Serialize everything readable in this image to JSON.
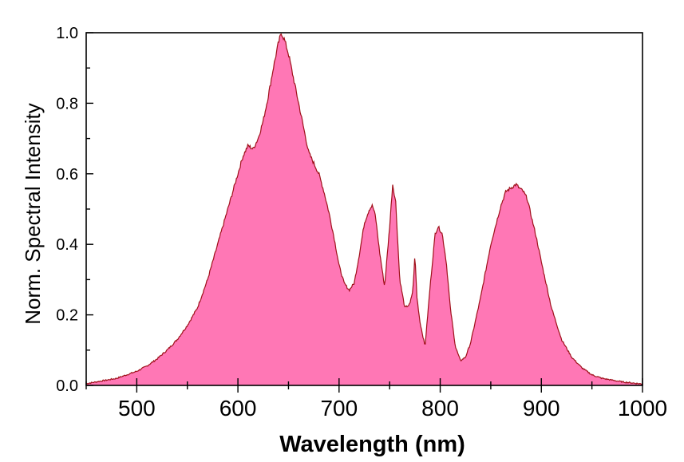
{
  "chart_data": {
    "type": "area",
    "title": "",
    "xlabel": "Wavelength (nm)",
    "ylabel": "Norm. Spectral Intensity",
    "xlim": [
      450,
      1000
    ],
    "ylim": [
      0,
      1.0
    ],
    "x_ticks": [
      500,
      600,
      700,
      800,
      900,
      1000
    ],
    "x_tick_labels": [
      "500",
      "600",
      "700",
      "800",
      "900",
      "1000"
    ],
    "y_ticks": [
      0.0,
      0.2,
      0.4,
      0.6,
      0.8,
      1.0
    ],
    "y_tick_labels": [
      "0.0",
      "0.2",
      "0.4",
      "0.6",
      "0.8",
      "1.0"
    ],
    "grid": false,
    "fill_color": "#ff77b5",
    "line_color": "#a0101a",
    "series": [
      {
        "x": [
          450,
          460,
          470,
          480,
          490,
          500,
          510,
          520,
          530,
          540,
          550,
          560,
          570,
          580,
          590,
          600,
          605,
          610,
          615,
          620,
          625,
          630,
          635,
          640,
          643,
          646,
          650,
          655,
          660,
          665,
          670,
          675,
          680,
          685,
          690,
          695,
          700,
          705,
          710,
          715,
          720,
          725,
          730,
          733,
          736,
          740,
          745,
          750,
          753,
          756,
          760,
          765,
          770,
          773,
          775,
          777,
          780,
          785,
          790,
          795,
          798,
          802,
          806,
          810,
          815,
          820,
          825,
          830,
          840,
          850,
          860,
          865,
          870,
          875,
          878,
          882,
          886,
          890,
          895,
          900,
          910,
          920,
          930,
          940,
          950,
          960,
          970,
          980,
          990,
          1000
        ],
        "y": [
          0.005,
          0.01,
          0.015,
          0.02,
          0.03,
          0.04,
          0.055,
          0.075,
          0.1,
          0.13,
          0.17,
          0.22,
          0.3,
          0.4,
          0.5,
          0.6,
          0.65,
          0.68,
          0.67,
          0.7,
          0.75,
          0.82,
          0.9,
          0.97,
          1.0,
          0.98,
          0.94,
          0.87,
          0.8,
          0.73,
          0.66,
          0.63,
          0.6,
          0.55,
          0.49,
          0.42,
          0.34,
          0.29,
          0.27,
          0.29,
          0.37,
          0.46,
          0.5,
          0.51,
          0.48,
          0.38,
          0.28,
          0.45,
          0.57,
          0.52,
          0.3,
          0.22,
          0.23,
          0.27,
          0.37,
          0.25,
          0.18,
          0.11,
          0.28,
          0.43,
          0.45,
          0.43,
          0.35,
          0.22,
          0.11,
          0.07,
          0.08,
          0.12,
          0.25,
          0.4,
          0.51,
          0.55,
          0.56,
          0.57,
          0.56,
          0.55,
          0.53,
          0.48,
          0.42,
          0.35,
          0.22,
          0.13,
          0.08,
          0.05,
          0.03,
          0.02,
          0.015,
          0.01,
          0.007,
          0.004
        ]
      }
    ]
  }
}
